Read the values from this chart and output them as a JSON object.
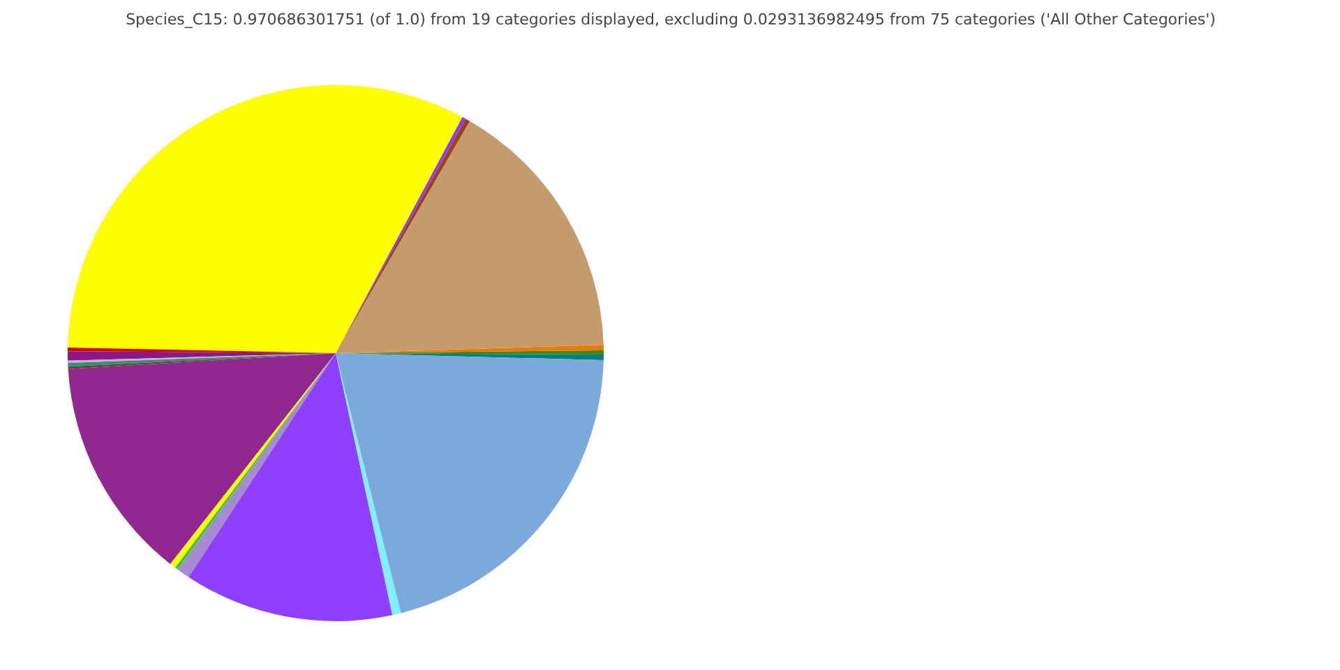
{
  "chart_data": {
    "type": "pie",
    "title": "Species_C15: 0.970686301751 (of 1.0) from 19 categories displayed, excluding 0.0293136982495 from 75 categories ('All Other Categories')",
    "categories": [
      null,
      null,
      null,
      null,
      null,
      null,
      null,
      null,
      null,
      null,
      null,
      null,
      null,
      null,
      null,
      null,
      null,
      null,
      null
    ],
    "values": [
      0.33,
      0.25,
      0.33,
      16.17,
      0.28,
      0.22,
      32.5,
      0.22,
      0.56,
      0.14,
      0.22,
      0.14,
      13.47,
      0.36,
      0.17,
      0.81,
      12.64,
      0.53,
      20.66
    ],
    "colors": [
      "#008080",
      "#3a8a1e",
      "#f07800",
      "#c49c6c",
      "#a0410d",
      "#8c3cff",
      "#ffff00",
      "#e00000",
      "#8a1a8a",
      "#f0a0c0",
      "#1a9a8a",
      "#6a4a1a",
      "#902890",
      "#ffff00",
      "#33cc33",
      "#a78bd0",
      "#8f3fff",
      "#80f0ff",
      "#7ba9d9"
    ]
  }
}
